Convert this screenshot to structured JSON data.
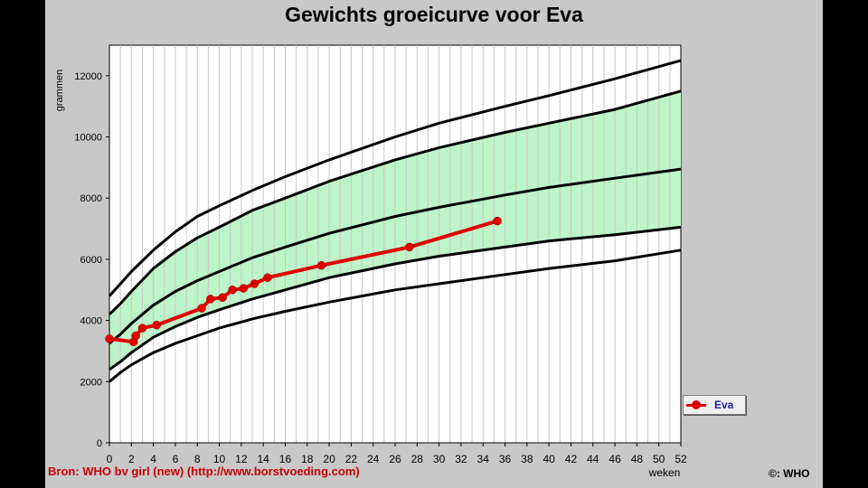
{
  "chart_data": {
    "type": "line",
    "title": "Gewichts groeicurve voor Eva",
    "xlabel": "weken",
    "ylabel": "grammen",
    "xlim": [
      0,
      52
    ],
    "ylim": [
      0,
      13000
    ],
    "x_ticks": [
      0,
      2,
      4,
      6,
      8,
      10,
      12,
      14,
      16,
      18,
      20,
      22,
      24,
      26,
      28,
      30,
      32,
      34,
      36,
      38,
      40,
      42,
      44,
      46,
      48,
      50,
      52
    ],
    "y_ticks": [
      0,
      2000,
      4000,
      6000,
      8000,
      10000,
      12000
    ],
    "grid": true,
    "legend_position": "right",
    "reference_x": [
      0,
      1,
      2,
      4,
      6,
      8,
      10,
      13,
      16,
      20,
      26,
      30,
      36,
      40,
      46,
      52
    ],
    "reference_curves": [
      {
        "values": [
          2000,
          2300,
          2550,
          2950,
          3250,
          3500,
          3750,
          4050,
          4300,
          4600,
          5000,
          5200,
          5500,
          5700,
          5950,
          6300
        ]
      },
      {
        "values": [
          2400,
          2650,
          2950,
          3450,
          3800,
          4100,
          4350,
          4700,
          5000,
          5400,
          5850,
          6100,
          6400,
          6600,
          6800,
          7050
        ]
      },
      {
        "values": [
          3250,
          3550,
          3900,
          4500,
          4950,
          5300,
          5600,
          6050,
          6400,
          6850,
          7400,
          7700,
          8100,
          8350,
          8650,
          8950
        ]
      },
      {
        "values": [
          4200,
          4550,
          4950,
          5700,
          6250,
          6700,
          7050,
          7600,
          8000,
          8550,
          9250,
          9650,
          10150,
          10450,
          10900,
          11500
        ]
      },
      {
        "values": [
          4800,
          5200,
          5600,
          6300,
          6900,
          7400,
          7750,
          8250,
          8700,
          9250,
          10000,
          10450,
          11000,
          11350,
          11900,
          12500
        ]
      }
    ],
    "band": {
      "lower_curve": 1,
      "upper_curve": 3,
      "color": "#bdf5c8"
    },
    "series": [
      {
        "name": "Eva",
        "color": "#e00000",
        "x": [
          0,
          2.2,
          2.4,
          3.0,
          4.3,
          8.4,
          9.2,
          10.3,
          11.2,
          12.2,
          13.2,
          14.4,
          19.3,
          27.3,
          35.3
        ],
        "y": [
          3400,
          3300,
          3500,
          3750,
          3850,
          4400,
          4700,
          4750,
          5000,
          5050,
          5200,
          5400,
          5800,
          6400,
          7250
        ]
      }
    ]
  },
  "source_note": "Bron: WHO bv girl (new) (http://www.borstvoeding.com)",
  "copyright": "©: WHO"
}
